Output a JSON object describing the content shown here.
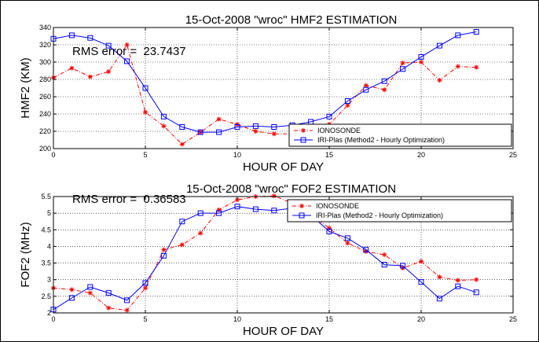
{
  "chart_data": [
    {
      "type": "line",
      "title": "15-Oct-2008 \"wroc\" HMF2 ESTIMATION",
      "xlabel": "HOUR OF DAY",
      "ylabel": "HMF2 (KM)",
      "xlim": [
        0,
        25
      ],
      "ylim": [
        200,
        340
      ],
      "xticks": [
        0,
        5,
        10,
        15,
        20,
        25
      ],
      "yticks": [
        200,
        220,
        240,
        260,
        280,
        300,
        320,
        340
      ],
      "grid": true,
      "legend_position": "bottom-right",
      "annotation": "RMS error =  23.7437",
      "x": [
        0,
        1,
        2,
        3,
        4,
        5,
        6,
        7,
        8,
        9,
        10,
        11,
        12,
        13,
        14,
        15,
        16,
        17,
        18,
        19,
        20,
        21,
        22,
        23
      ],
      "series": [
        {
          "name": "IONOSONDE",
          "color": "#ff0000",
          "marker": "star",
          "values": [
            282,
            293,
            283,
            289,
            320,
            242,
            226,
            205,
            219,
            234,
            228,
            220,
            217,
            217,
            215,
            228,
            250,
            273,
            268,
            299,
            300,
            279,
            295,
            294
          ]
        },
        {
          "name": "IRI-Plas (Method2 - Hourly Optimization)",
          "color": "#0000ff",
          "marker": "square",
          "values": [
            327,
            331,
            328,
            319,
            301,
            270,
            237,
            225,
            219,
            219,
            225,
            226,
            225,
            227,
            231,
            237,
            255,
            268,
            278,
            292,
            306,
            319,
            331,
            335
          ]
        }
      ]
    },
    {
      "type": "line",
      "title": "15-Oct-2008 \"wroc\" FOF2 ESTIMATION",
      "xlabel": "HOUR OF DAY",
      "ylabel": "FOF2 (MHz)",
      "xlim": [
        0,
        25
      ],
      "ylim": [
        2,
        5.5
      ],
      "xticks": [
        0,
        5,
        10,
        15,
        20,
        25
      ],
      "yticks": [
        2,
        2.5,
        3,
        3.5,
        4,
        4.5,
        5,
        5.5
      ],
      "grid": true,
      "legend_position": "top-right",
      "annotation": "RMS error =  0.36583",
      "x": [
        0,
        1,
        2,
        3,
        4,
        5,
        6,
        7,
        8,
        9,
        10,
        11,
        12,
        13,
        14,
        15,
        16,
        17,
        18,
        19,
        20,
        21,
        22,
        23
      ],
      "series": [
        {
          "name": "IONOSONDE",
          "color": "#ff0000",
          "marker": "star",
          "values": [
            2.75,
            2.7,
            2.6,
            2.15,
            2.08,
            2.75,
            3.9,
            4.05,
            4.4,
            5.1,
            5.4,
            5.5,
            5.52,
            5.3,
            4.95,
            4.55,
            4.1,
            3.85,
            3.75,
            3.35,
            3.55,
            3.08,
            2.98,
            3.0
          ]
        },
        {
          "name": "IRI-Plas (Method2 - Hourly Optimization)",
          "color": "#0000ff",
          "marker": "square",
          "values": [
            2.1,
            2.45,
            2.78,
            2.6,
            2.38,
            2.9,
            3.72,
            4.75,
            5.0,
            5.0,
            5.2,
            5.12,
            5.08,
            5.15,
            4.95,
            4.45,
            4.25,
            3.9,
            3.45,
            3.42,
            2.93,
            2.43,
            2.8,
            2.62
          ]
        }
      ]
    }
  ]
}
